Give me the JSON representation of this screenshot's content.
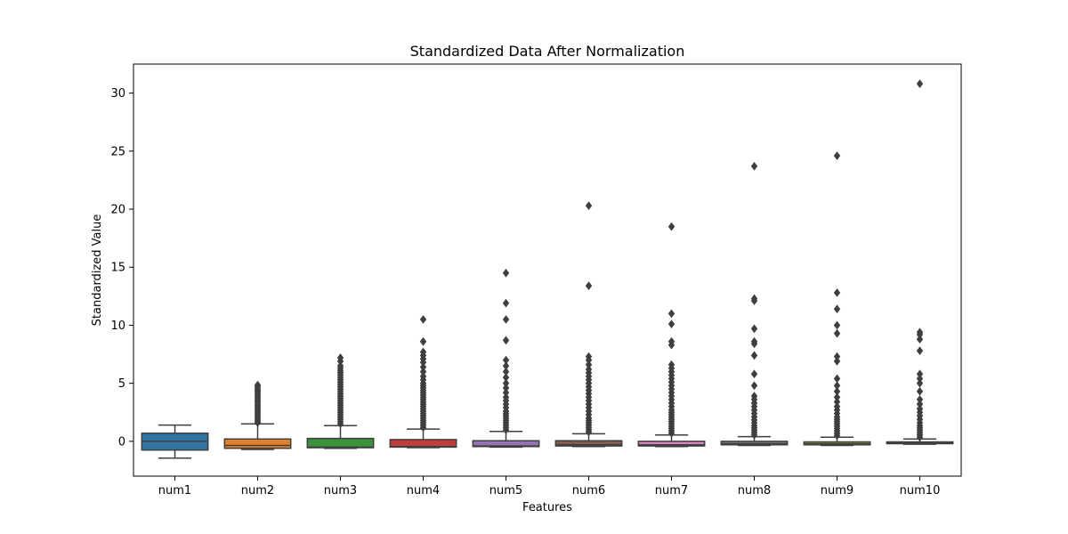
{
  "chart_data": {
    "type": "box",
    "title": "Standardized Data After Normalization",
    "xlabel": "Features",
    "ylabel": "Standardized Value",
    "ylim": [
      -3,
      32.5
    ],
    "yticks": [
      0,
      5,
      10,
      15,
      20,
      25,
      30
    ],
    "grid": false,
    "legend": "none",
    "categories": [
      "num1",
      "num2",
      "num3",
      "num4",
      "num5",
      "num6",
      "num7",
      "num8",
      "num9",
      "num10"
    ],
    "series": [
      {
        "category": "num1",
        "color": "#3274a1",
        "whisker_low": -1.45,
        "q1": -0.75,
        "median": 0.0,
        "q3": 0.7,
        "whisker_high": 1.4,
        "outliers": []
      },
      {
        "category": "num2",
        "color": "#e1812c",
        "whisker_low": -0.7,
        "q1": -0.6,
        "median": -0.35,
        "q3": 0.2,
        "whisker_high": 1.5,
        "outliers": [
          1.6,
          1.75,
          1.9,
          2.05,
          2.2,
          2.35,
          2.5,
          2.65,
          2.8,
          2.95,
          3.1,
          3.25,
          3.4,
          3.55,
          3.7,
          3.85,
          4.0,
          4.15,
          4.3,
          4.45,
          4.6,
          4.75,
          4.85
        ]
      },
      {
        "category": "num3",
        "color": "#3a923a",
        "whisker_low": -0.6,
        "q1": -0.55,
        "median": -0.5,
        "q3": 0.25,
        "whisker_high": 1.35,
        "outliers": [
          1.5,
          1.7,
          1.9,
          2.1,
          2.3,
          2.5,
          2.7,
          2.9,
          3.1,
          3.3,
          3.5,
          3.7,
          3.9,
          4.1,
          4.3,
          4.5,
          4.7,
          4.9,
          5.1,
          5.3,
          5.5,
          5.7,
          5.9,
          6.1,
          6.3,
          6.5,
          6.9,
          7.2
        ]
      },
      {
        "category": "num4",
        "color": "#c03d3e",
        "whisker_low": -0.55,
        "q1": -0.5,
        "median": -0.45,
        "q3": 0.15,
        "whisker_high": 1.05,
        "outliers": [
          1.2,
          1.4,
          1.6,
          1.8,
          2.0,
          2.2,
          2.4,
          2.6,
          2.8,
          3.0,
          3.2,
          3.4,
          3.6,
          3.8,
          4.0,
          4.2,
          4.4,
          4.6,
          4.8,
          5.0,
          5.3,
          5.6,
          6.0,
          6.4,
          6.8,
          7.1,
          7.4,
          7.7,
          8.6,
          10.5
        ]
      },
      {
        "category": "num5",
        "color": "#9372b2",
        "whisker_low": -0.5,
        "q1": -0.45,
        "median": -0.4,
        "q3": 0.05,
        "whisker_high": 0.85,
        "outliers": [
          1.0,
          1.2,
          1.4,
          1.6,
          1.8,
          2.0,
          2.2,
          2.4,
          2.6,
          2.9,
          3.2,
          3.5,
          3.8,
          4.2,
          4.6,
          5.0,
          5.5,
          6.0,
          6.5,
          7.0,
          8.7,
          10.5,
          11.9,
          14.5
        ]
      },
      {
        "category": "num6",
        "color": "#845b53",
        "whisker_low": -0.45,
        "q1": -0.4,
        "median": -0.3,
        "q3": 0.05,
        "whisker_high": 0.65,
        "outliers": [
          0.8,
          1.0,
          1.2,
          1.4,
          1.6,
          1.8,
          2.0,
          2.3,
          2.6,
          2.9,
          3.2,
          3.5,
          3.8,
          4.1,
          4.4,
          4.7,
          5.0,
          5.3,
          5.6,
          5.9,
          6.2,
          6.6,
          7.0,
          7.3,
          13.4,
          20.3
        ]
      },
      {
        "category": "num7",
        "color": "#d684bd",
        "whisker_low": -0.45,
        "q1": -0.4,
        "median": -0.3,
        "q3": 0.0,
        "whisker_high": 0.55,
        "outliers": [
          0.7,
          0.9,
          1.1,
          1.3,
          1.5,
          1.7,
          1.9,
          2.1,
          2.3,
          2.5,
          2.7,
          3.0,
          3.3,
          3.6,
          3.9,
          4.2,
          4.5,
          4.8,
          5.1,
          5.4,
          5.7,
          6.0,
          6.3,
          6.6,
          8.3,
          8.6,
          10.1,
          11.0,
          18.5
        ]
      },
      {
        "category": "num8",
        "color": "#7f7f7f",
        "whisker_low": -0.35,
        "q1": -0.3,
        "median": -0.2,
        "q3": 0.0,
        "whisker_high": 0.4,
        "outliers": [
          0.55,
          0.75,
          0.95,
          1.15,
          1.35,
          1.6,
          1.85,
          2.1,
          2.4,
          2.7,
          3.0,
          3.3,
          3.6,
          3.9,
          4.8,
          5.8,
          7.4,
          8.4,
          8.6,
          9.7,
          12.1,
          12.3,
          23.7
        ]
      },
      {
        "category": "num9",
        "color": "#a9aa35",
        "whisker_low": -0.35,
        "q1": -0.3,
        "median": -0.2,
        "q3": -0.05,
        "whisker_high": 0.35,
        "outliers": [
          0.5,
          0.7,
          0.9,
          1.1,
          1.3,
          1.5,
          1.7,
          1.9,
          2.1,
          2.4,
          2.7,
          3.0,
          3.4,
          3.8,
          4.3,
          4.8,
          5.4,
          6.9,
          7.3,
          9.3,
          10.0,
          11.4,
          12.8,
          24.6
        ]
      },
      {
        "category": "num10",
        "color": "#2ea8b8",
        "whisker_low": -0.25,
        "q1": -0.2,
        "median": -0.15,
        "q3": -0.05,
        "whisker_high": 0.2,
        "outliers": [
          0.35,
          0.55,
          0.75,
          0.95,
          1.15,
          1.35,
          1.6,
          1.9,
          2.2,
          2.5,
          2.8,
          3.2,
          3.6,
          4.3,
          5.0,
          5.4,
          5.8,
          7.8,
          8.8,
          9.2,
          9.4,
          30.8
        ]
      }
    ]
  }
}
